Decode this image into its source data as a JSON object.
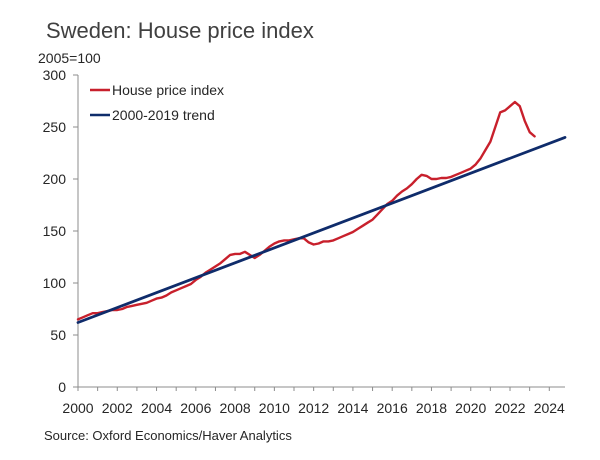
{
  "chart_data": {
    "type": "line",
    "title": "Sweden: House price index",
    "unit_label": "2005=100",
    "source": "Source: Oxford Economics/Haver Analytics",
    "xlim": [
      2000,
      2024.8
    ],
    "ylim": [
      0,
      300
    ],
    "x_ticks": [
      2000,
      2002,
      2004,
      2006,
      2008,
      2010,
      2012,
      2014,
      2016,
      2018,
      2020,
      2022,
      2024
    ],
    "y_ticks": [
      0,
      50,
      100,
      150,
      200,
      250,
      300
    ],
    "legend_placement": "top-left",
    "grid": false,
    "series": [
      {
        "name": "House price index",
        "color": "#c8202c",
        "points": [
          [
            2000,
            65
          ],
          [
            2000.25,
            67
          ],
          [
            2000.5,
            69
          ],
          [
            2000.75,
            71
          ],
          [
            2001,
            71
          ],
          [
            2001.25,
            72
          ],
          [
            2001.5,
            73
          ],
          [
            2001.75,
            74
          ],
          [
            2002,
            74
          ],
          [
            2002.25,
            75
          ],
          [
            2002.5,
            77
          ],
          [
            2002.75,
            78
          ],
          [
            2003,
            79
          ],
          [
            2003.25,
            80
          ],
          [
            2003.5,
            81
          ],
          [
            2003.75,
            83
          ],
          [
            2004,
            85
          ],
          [
            2004.25,
            86
          ],
          [
            2004.5,
            88
          ],
          [
            2004.75,
            91
          ],
          [
            2005,
            93
          ],
          [
            2005.25,
            95
          ],
          [
            2005.5,
            97
          ],
          [
            2005.75,
            99
          ],
          [
            2006,
            103
          ],
          [
            2006.25,
            106
          ],
          [
            2006.5,
            110
          ],
          [
            2006.75,
            113
          ],
          [
            2007,
            116
          ],
          [
            2007.25,
            119
          ],
          [
            2007.5,
            123
          ],
          [
            2007.75,
            127
          ],
          [
            2008,
            128
          ],
          [
            2008.25,
            128
          ],
          [
            2008.5,
            130
          ],
          [
            2008.75,
            127
          ],
          [
            2009,
            124
          ],
          [
            2009.25,
            127
          ],
          [
            2009.5,
            131
          ],
          [
            2009.75,
            135
          ],
          [
            2010,
            138
          ],
          [
            2010.25,
            140
          ],
          [
            2010.5,
            141
          ],
          [
            2010.75,
            141
          ],
          [
            2011,
            142
          ],
          [
            2011.25,
            143
          ],
          [
            2011.5,
            143
          ],
          [
            2011.75,
            139
          ],
          [
            2012,
            137
          ],
          [
            2012.25,
            138
          ],
          [
            2012.5,
            140
          ],
          [
            2012.75,
            140
          ],
          [
            2013,
            141
          ],
          [
            2013.25,
            143
          ],
          [
            2013.5,
            145
          ],
          [
            2013.75,
            147
          ],
          [
            2014,
            149
          ],
          [
            2014.25,
            152
          ],
          [
            2014.5,
            155
          ],
          [
            2014.75,
            158
          ],
          [
            2015,
            161
          ],
          [
            2015.25,
            166
          ],
          [
            2015.5,
            171
          ],
          [
            2015.75,
            176
          ],
          [
            2016,
            179
          ],
          [
            2016.25,
            184
          ],
          [
            2016.5,
            188
          ],
          [
            2016.75,
            191
          ],
          [
            2017,
            195
          ],
          [
            2017.25,
            200
          ],
          [
            2017.5,
            204
          ],
          [
            2017.75,
            203
          ],
          [
            2018,
            200
          ],
          [
            2018.25,
            200
          ],
          [
            2018.5,
            201
          ],
          [
            2018.75,
            201
          ],
          [
            2019,
            202
          ],
          [
            2019.25,
            204
          ],
          [
            2019.5,
            206
          ],
          [
            2019.75,
            208
          ],
          [
            2020,
            210
          ],
          [
            2020.25,
            214
          ],
          [
            2020.5,
            220
          ],
          [
            2020.75,
            228
          ],
          [
            2021,
            236
          ],
          [
            2021.25,
            250
          ],
          [
            2021.5,
            264
          ],
          [
            2021.75,
            266
          ],
          [
            2022,
            270
          ],
          [
            2022.25,
            274
          ],
          [
            2022.5,
            270
          ],
          [
            2022.75,
            256
          ],
          [
            2023,
            245
          ],
          [
            2023.25,
            241
          ]
        ]
      },
      {
        "name": "2000-2019 trend",
        "color": "#0f2c6b",
        "points": [
          [
            2000,
            62
          ],
          [
            2024.8,
            240
          ]
        ]
      }
    ]
  }
}
